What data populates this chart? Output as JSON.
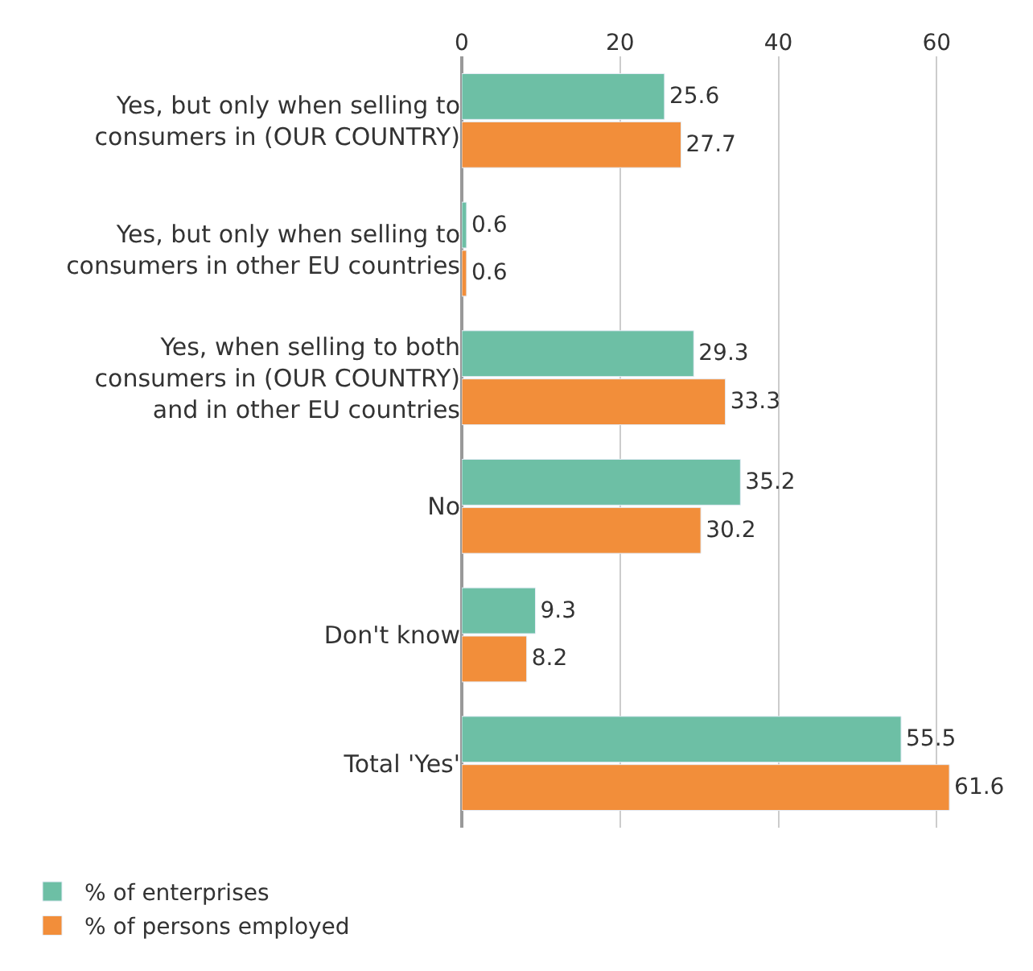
{
  "chart_data": {
    "type": "bar",
    "orientation": "horizontal",
    "categories": [
      "Yes, but only when selling to\nconsumers in (OUR COUNTRY)",
      "Yes, but only when selling to\nconsumers in other EU countries",
      "Yes, when selling to both\nconsumers in (OUR COUNTRY)\nand in other EU countries",
      "No",
      "Don't know",
      "Total 'Yes'"
    ],
    "series": [
      {
        "name": "% of enterprises",
        "color": "#6dbfa5",
        "values": [
          25.6,
          0.6,
          29.3,
          35.2,
          9.3,
          55.5
        ]
      },
      {
        "name": "% of persons employed",
        "color": "#f28e3a",
        "values": [
          27.7,
          0.6,
          33.3,
          30.2,
          8.2,
          61.6
        ]
      }
    ],
    "xlim": [
      0,
      62
    ],
    "xticks": [
      0,
      20,
      40,
      60
    ],
    "grid": "x",
    "data_labels": true,
    "legend": "bottom left"
  }
}
